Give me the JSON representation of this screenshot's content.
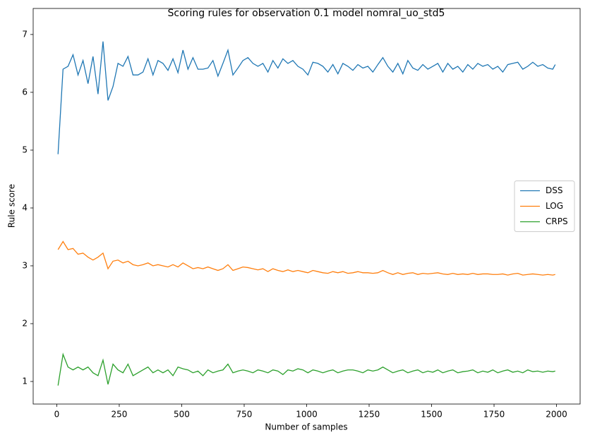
{
  "chart_data": {
    "type": "line",
    "title": "Scoring rules for observation 0.1 model nomral_uo_std5",
    "x_label": "Number of samples",
    "y_label": "Rule score",
    "x": [
      5,
      25,
      45,
      65,
      85,
      105,
      125,
      145,
      165,
      185,
      205,
      225,
      245,
      265,
      285,
      305,
      325,
      345,
      365,
      385,
      405,
      425,
      445,
      465,
      485,
      505,
      525,
      545,
      565,
      585,
      605,
      625,
      645,
      665,
      685,
      705,
      725,
      745,
      765,
      785,
      805,
      825,
      845,
      865,
      885,
      905,
      925,
      945,
      965,
      985,
      1005,
      1025,
      1045,
      1065,
      1085,
      1105,
      1125,
      1145,
      1165,
      1185,
      1205,
      1225,
      1245,
      1265,
      1285,
      1305,
      1325,
      1345,
      1365,
      1385,
      1405,
      1425,
      1445,
      1465,
      1485,
      1505,
      1525,
      1545,
      1565,
      1585,
      1605,
      1625,
      1645,
      1665,
      1685,
      1705,
      1725,
      1745,
      1765,
      1785,
      1805,
      1825,
      1845,
      1865,
      1885,
      1905,
      1925,
      1945,
      1965,
      1985,
      1995
    ],
    "series": [
      {
        "name": "DSS",
        "color": "#1f77b4",
        "values": [
          4.93,
          6.4,
          6.45,
          6.65,
          6.3,
          6.55,
          6.15,
          6.62,
          5.97,
          6.88,
          5.86,
          6.1,
          6.5,
          6.45,
          6.62,
          6.3,
          6.3,
          6.35,
          6.58,
          6.3,
          6.55,
          6.5,
          6.38,
          6.58,
          6.34,
          6.73,
          6.4,
          6.6,
          6.4,
          6.4,
          6.42,
          6.55,
          6.28,
          6.5,
          6.73,
          6.3,
          6.42,
          6.55,
          6.6,
          6.5,
          6.45,
          6.5,
          6.35,
          6.55,
          6.42,
          6.58,
          6.5,
          6.55,
          6.45,
          6.4,
          6.3,
          6.52,
          6.5,
          6.45,
          6.35,
          6.48,
          6.32,
          6.5,
          6.45,
          6.38,
          6.48,
          6.42,
          6.45,
          6.35,
          6.48,
          6.6,
          6.45,
          6.35,
          6.5,
          6.32,
          6.55,
          6.42,
          6.38,
          6.48,
          6.4,
          6.45,
          6.5,
          6.35,
          6.5,
          6.4,
          6.45,
          6.35,
          6.48,
          6.4,
          6.5,
          6.45,
          6.48,
          6.4,
          6.45,
          6.35,
          6.48,
          6.5,
          6.52,
          6.4,
          6.45,
          6.52,
          6.45,
          6.48,
          6.42,
          6.4,
          6.48
        ]
      },
      {
        "name": "LOG",
        "color": "#ff7f0e",
        "values": [
          3.28,
          3.42,
          3.28,
          3.3,
          3.2,
          3.22,
          3.15,
          3.1,
          3.15,
          3.22,
          2.95,
          3.08,
          3.1,
          3.05,
          3.08,
          3.02,
          3.0,
          3.02,
          3.05,
          3.0,
          3.02,
          3.0,
          2.98,
          3.02,
          2.98,
          3.05,
          3.0,
          2.95,
          2.97,
          2.95,
          2.98,
          2.95,
          2.92,
          2.95,
          3.02,
          2.92,
          2.95,
          2.98,
          2.97,
          2.95,
          2.93,
          2.95,
          2.9,
          2.95,
          2.92,
          2.9,
          2.93,
          2.9,
          2.92,
          2.9,
          2.88,
          2.92,
          2.9,
          2.88,
          2.87,
          2.9,
          2.88,
          2.9,
          2.87,
          2.88,
          2.9,
          2.88,
          2.88,
          2.87,
          2.88,
          2.92,
          2.88,
          2.85,
          2.88,
          2.85,
          2.87,
          2.88,
          2.85,
          2.87,
          2.86,
          2.87,
          2.88,
          2.86,
          2.85,
          2.87,
          2.85,
          2.86,
          2.85,
          2.87,
          2.85,
          2.86,
          2.86,
          2.85,
          2.85,
          2.86,
          2.84,
          2.86,
          2.87,
          2.84,
          2.85,
          2.86,
          2.85,
          2.84,
          2.85,
          2.84,
          2.85
        ]
      },
      {
        "name": "CRPS",
        "color": "#2ca02c",
        "values": [
          0.93,
          1.47,
          1.25,
          1.2,
          1.25,
          1.2,
          1.25,
          1.15,
          1.1,
          1.37,
          0.95,
          1.3,
          1.2,
          1.15,
          1.3,
          1.1,
          1.15,
          1.2,
          1.25,
          1.15,
          1.2,
          1.15,
          1.2,
          1.1,
          1.25,
          1.22,
          1.2,
          1.15,
          1.18,
          1.1,
          1.2,
          1.15,
          1.18,
          1.2,
          1.3,
          1.15,
          1.18,
          1.2,
          1.18,
          1.15,
          1.2,
          1.18,
          1.15,
          1.2,
          1.18,
          1.12,
          1.2,
          1.18,
          1.22,
          1.2,
          1.15,
          1.2,
          1.18,
          1.15,
          1.18,
          1.2,
          1.15,
          1.18,
          1.2,
          1.2,
          1.18,
          1.15,
          1.2,
          1.18,
          1.2,
          1.25,
          1.2,
          1.15,
          1.18,
          1.2,
          1.15,
          1.18,
          1.2,
          1.15,
          1.18,
          1.16,
          1.2,
          1.15,
          1.18,
          1.2,
          1.15,
          1.17,
          1.18,
          1.2,
          1.15,
          1.18,
          1.16,
          1.2,
          1.15,
          1.18,
          1.2,
          1.16,
          1.18,
          1.15,
          1.2,
          1.17,
          1.18,
          1.16,
          1.18,
          1.17,
          1.18
        ]
      }
    ],
    "xlim": [
      -94.5,
      2094.5
    ],
    "xticks": [
      0,
      250,
      500,
      750,
      1000,
      1250,
      1500,
      1750,
      2000
    ],
    "ylim": [
      0.61,
      7.45
    ],
    "yticks": [
      1,
      2,
      3,
      4,
      5,
      6,
      7
    ],
    "grid": false,
    "legend": "center right"
  }
}
